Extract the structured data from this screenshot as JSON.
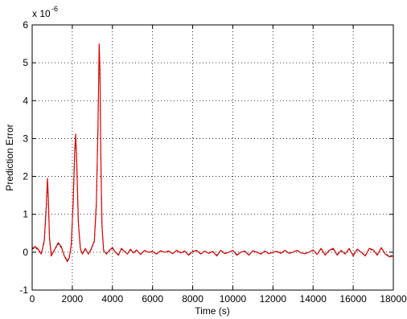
{
  "chart_data": {
    "type": "line",
    "xlabel": "Time (s)",
    "ylabel": "Prediction Error",
    "y_multiplier": {
      "base": "x 10",
      "exponent": "-6"
    },
    "xlim": [
      0,
      18000
    ],
    "ylim": [
      -1,
      6
    ],
    "xticks": [
      0,
      2000,
      4000,
      6000,
      8000,
      10000,
      12000,
      14000,
      16000,
      18000
    ],
    "yticks": [
      -1,
      0,
      1,
      2,
      3,
      4,
      5,
      6
    ],
    "grid": true,
    "line_color": "#e00000",
    "dashed_color": "#000000",
    "series": [
      {
        "style": "solid",
        "x": [
          0,
          150,
          300,
          450,
          600,
          700,
          760,
          800,
          860,
          950,
          1100,
          1300,
          1450,
          1600,
          1750,
          1850,
          1950,
          2050,
          2120,
          2170,
          2220,
          2300,
          2400,
          2500,
          2650,
          2800,
          2950,
          3100,
          3200,
          3280,
          3340,
          3380,
          3420,
          3480,
          3560,
          3700,
          3850,
          4000,
          4150,
          4300,
          4450,
          4600,
          4750,
          4900,
          5050,
          5200,
          5400,
          5600,
          5800,
          6000,
          6200,
          6400,
          6600,
          6800,
          7000,
          7200,
          7400,
          7600,
          7800,
          8000,
          8200,
          8400,
          8600,
          8800,
          9000,
          9200,
          9400,
          9600,
          9800,
          10000,
          10200,
          10400,
          10600,
          10800,
          11000,
          11200,
          11400,
          11600,
          11800,
          12000,
          12200,
          12400,
          12600,
          12800,
          13000,
          13200,
          13400,
          13600,
          13800,
          14000,
          14200,
          14400,
          14600,
          14800,
          15000,
          15200,
          15400,
          15600,
          15800,
          16000,
          16200,
          16400,
          16600,
          16800,
          17000,
          17200,
          17400,
          17600,
          17800,
          18000
        ],
        "y": [
          0.1,
          0.15,
          0.08,
          -0.05,
          0.3,
          1.2,
          1.95,
          1.5,
          0.4,
          -0.1,
          0.05,
          0.25,
          0.15,
          -0.1,
          -0.25,
          -0.15,
          0.2,
          1.4,
          2.7,
          3.12,
          2.4,
          0.8,
          0.1,
          -0.05,
          0.1,
          -0.05,
          0.1,
          0.3,
          1.3,
          3.3,
          5.5,
          4.8,
          2.6,
          0.7,
          0.05,
          -0.05,
          0.05,
          0.12,
          0.0,
          -0.08,
          0.1,
          0.02,
          -0.05,
          0.08,
          -0.02,
          0.06,
          -0.06,
          0.05,
          0.0,
          0.02,
          -0.05,
          0.04,
          0.0,
          0.03,
          -0.04,
          0.05,
          -0.02,
          0.03,
          -0.08,
          0.02,
          0.05,
          -0.05,
          0.03,
          -0.03,
          0.02,
          -0.1,
          0.05,
          -0.04,
          0.0,
          0.05,
          -0.08,
          0.0,
          0.03,
          -0.08,
          0.04,
          0.0,
          -0.05,
          0.03,
          -0.04,
          0.0,
          0.02,
          -0.03,
          0.05,
          -0.03,
          0.0,
          0.05,
          -0.02,
          -0.04,
          0.0,
          0.06,
          -0.06,
          0.1,
          -0.08,
          0.05,
          0.1,
          -0.08,
          0.05,
          -0.05,
          0.1,
          -0.1,
          0.08,
          0.0,
          -0.1,
          0.1,
          0.06,
          -0.08,
          0.12,
          -0.05,
          -0.12,
          -0.1
        ]
      },
      {
        "style": "dashed",
        "x": [
          0,
          150,
          300,
          450,
          600,
          700,
          760,
          800,
          860,
          950,
          1100,
          1300,
          1450,
          1600,
          1750,
          1850,
          1950,
          2050,
          2120,
          2170,
          2220,
          2300,
          2400,
          2500,
          2650,
          2800,
          2950,
          3100,
          3200,
          3280,
          3340,
          3380,
          3420,
          3480,
          3560,
          3700,
          3850,
          4000,
          4150,
          4300,
          4450,
          4600,
          4750,
          4900,
          5050,
          5200,
          5400,
          5600,
          5800,
          6000,
          6200,
          6400,
          6600,
          6800,
          7000,
          7200,
          7400,
          7600,
          7800,
          8000,
          8200,
          8400,
          8600,
          8800,
          9000,
          9200,
          9400,
          9600,
          9800,
          10000,
          10200,
          10400,
          10600,
          10800,
          11000,
          11200,
          11400,
          11600,
          11800,
          12000,
          12200,
          12400,
          12600,
          12800,
          13000,
          13200,
          13400,
          13600,
          13800,
          14000,
          14200,
          14400,
          14600,
          14800,
          15000,
          15200,
          15400,
          15600,
          15800,
          16000,
          16200,
          16400,
          16600,
          16800,
          17000,
          17200,
          17400,
          17600,
          17800,
          18000
        ],
        "y": [
          0.08,
          0.12,
          0.06,
          -0.03,
          0.25,
          1.1,
          1.85,
          1.4,
          0.35,
          -0.08,
          0.04,
          0.22,
          0.12,
          -0.08,
          -0.22,
          -0.12,
          0.18,
          1.3,
          2.6,
          3.0,
          2.3,
          0.75,
          0.08,
          -0.04,
          0.08,
          -0.04,
          0.08,
          0.28,
          1.2,
          3.2,
          5.4,
          4.7,
          2.5,
          0.65,
          0.04,
          -0.04,
          0.04,
          0.1,
          0.0,
          -0.06,
          0.08,
          0.02,
          -0.04,
          0.06,
          -0.02,
          0.05,
          -0.05,
          0.04,
          0.0,
          0.02,
          -0.04,
          0.03,
          0.0,
          0.02,
          -0.03,
          0.04,
          -0.02,
          0.02,
          -0.06,
          0.02,
          0.04,
          -0.04,
          0.02,
          -0.02,
          0.02,
          -0.08,
          0.04,
          -0.03,
          0.0,
          0.04,
          -0.06,
          0.0,
          0.02,
          -0.06,
          0.03,
          0.0,
          -0.04,
          0.02,
          -0.03,
          0.0,
          0.02,
          -0.02,
          0.04,
          -0.02,
          0.0,
          0.04,
          -0.02,
          -0.03,
          0.0,
          0.05,
          -0.05,
          0.08,
          -0.06,
          0.04,
          0.08,
          -0.06,
          0.04,
          -0.04,
          0.08,
          -0.08,
          0.06,
          0.0,
          -0.08,
          0.08,
          0.05,
          -0.06,
          0.1,
          -0.04,
          -0.1,
          -0.08
        ]
      }
    ]
  }
}
